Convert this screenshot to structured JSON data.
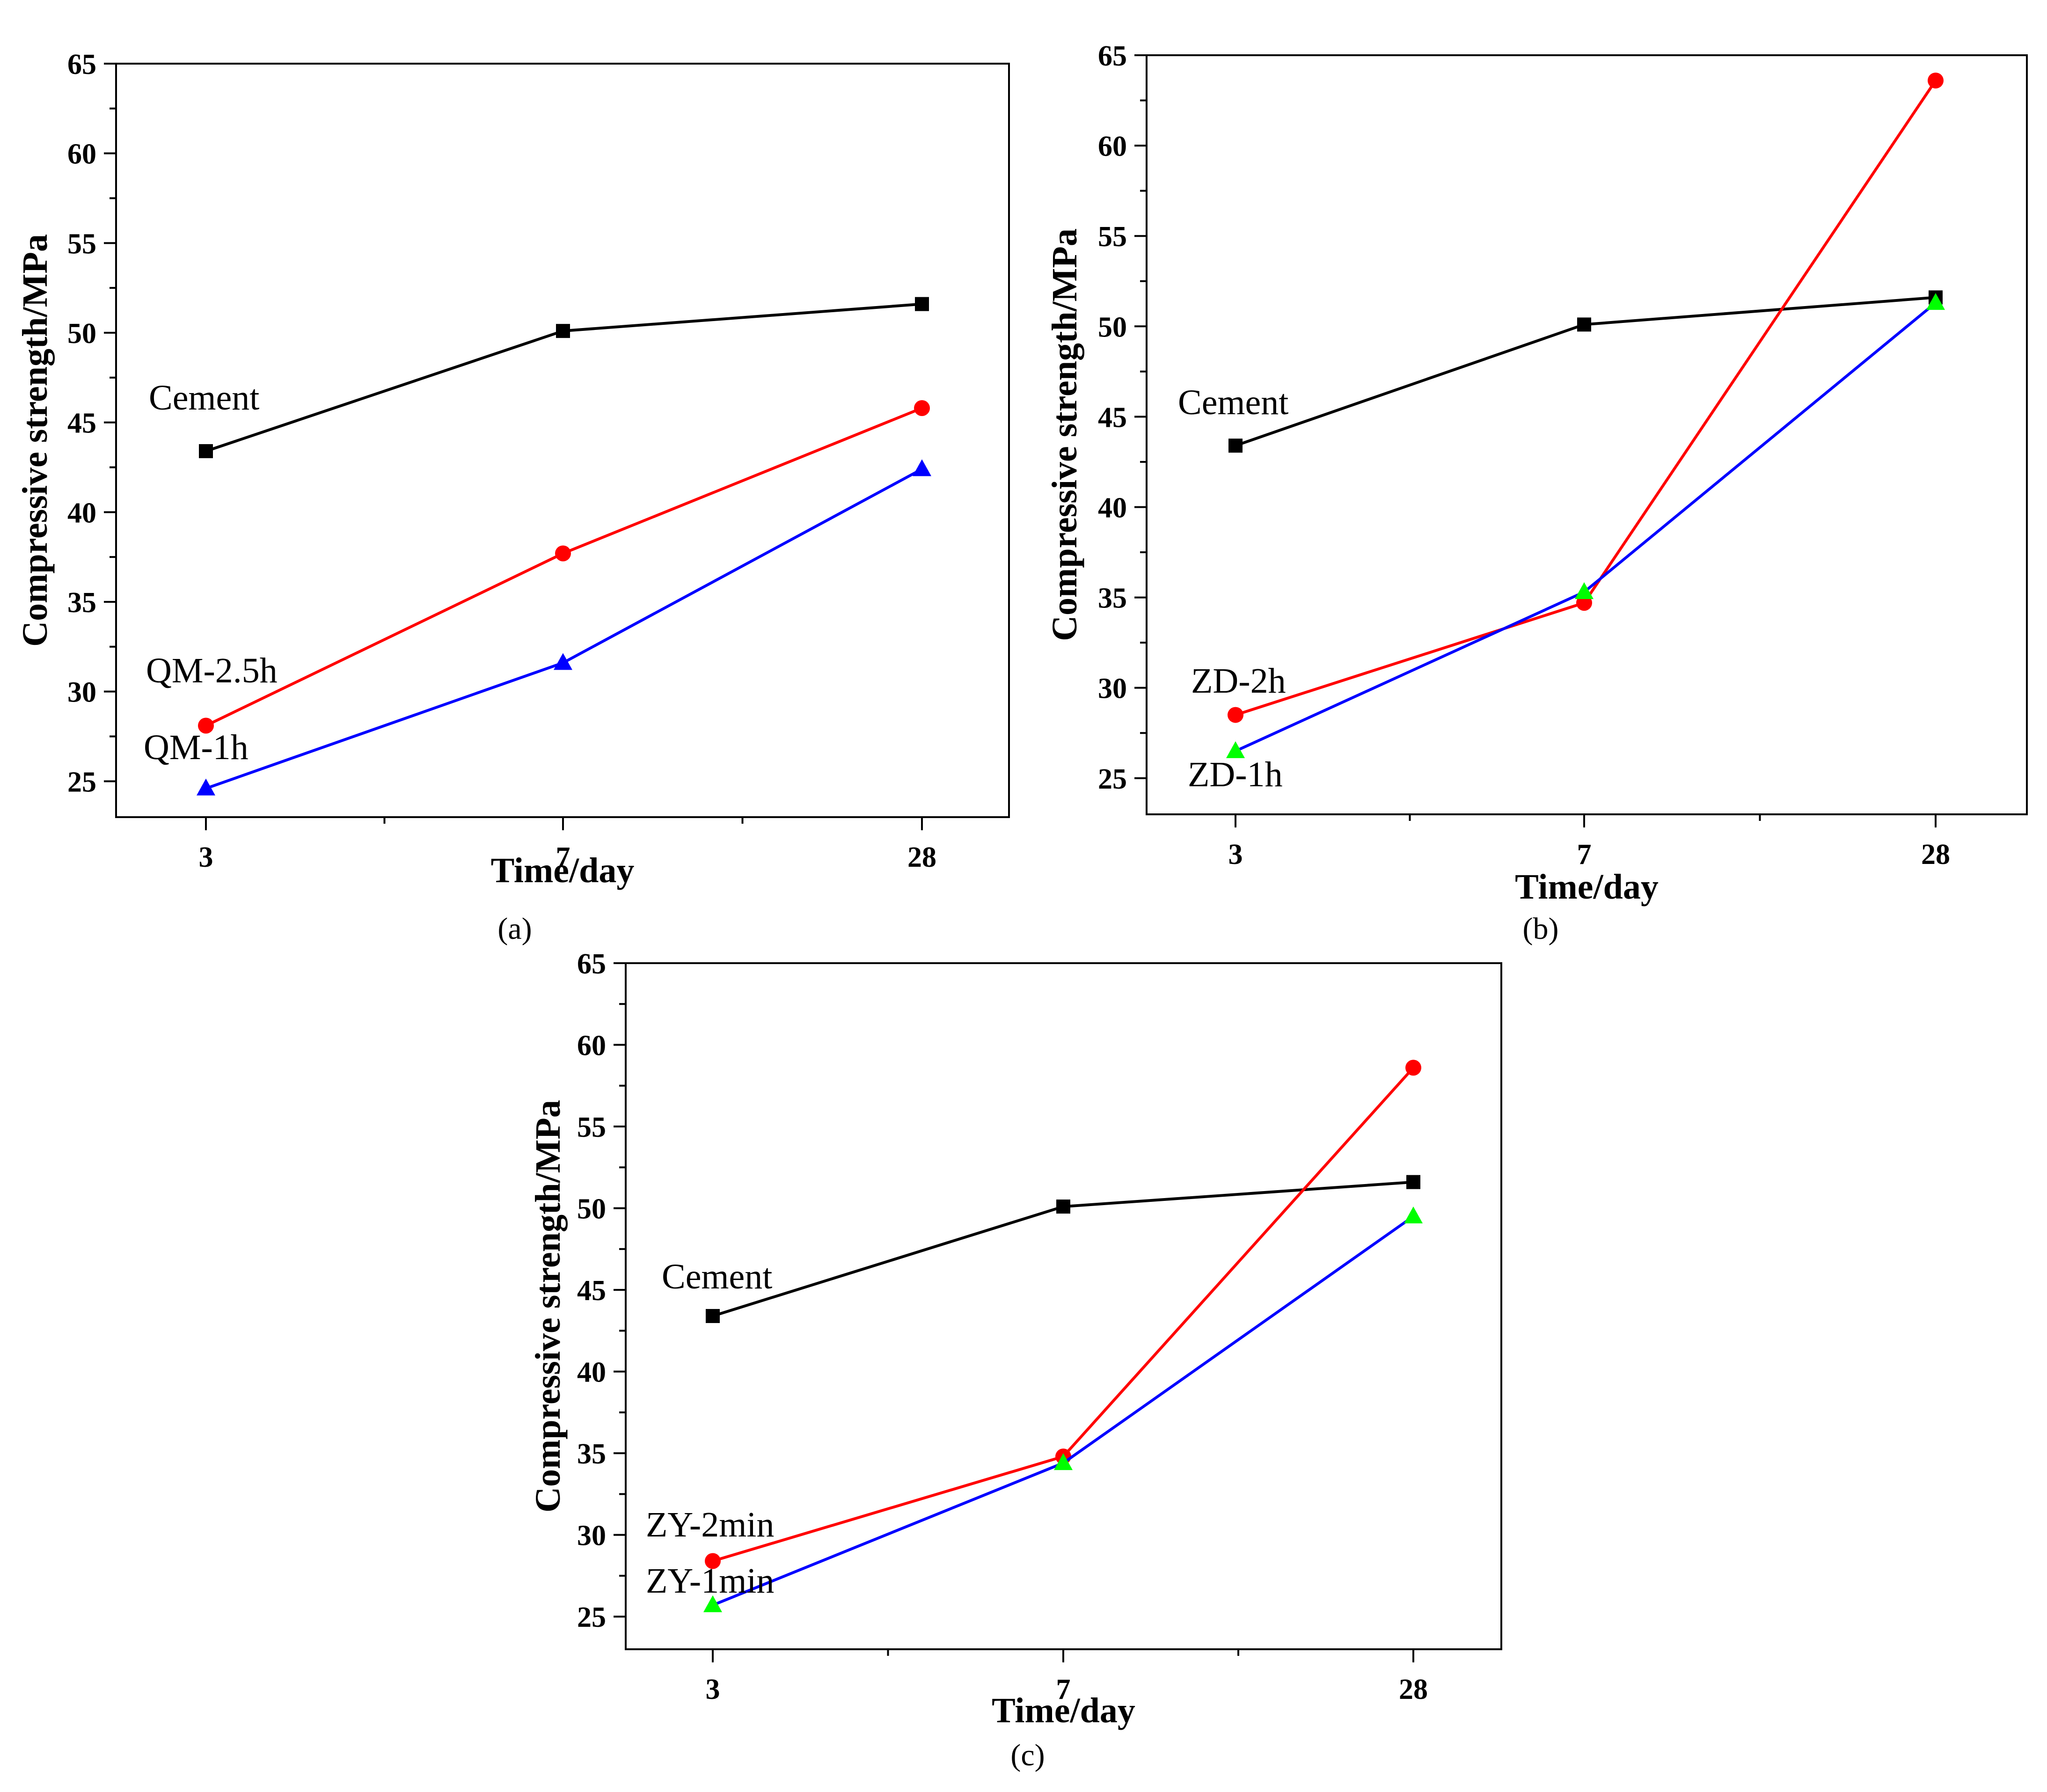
{
  "chart_data": [
    {
      "type": "line",
      "panel_label": "(a)",
      "xlabel": "Time/day",
      "ylabel": "Compressive strength/MPa",
      "categories": [
        "3",
        "7",
        "28"
      ],
      "ylim": [
        23,
        65
      ],
      "yticks": [
        25,
        30,
        35,
        40,
        45,
        50,
        55,
        60,
        65
      ],
      "series": [
        {
          "name": "Cement",
          "color": "#000000",
          "marker": "square",
          "marker_color": "#000000",
          "values": [
            43.4,
            50.1,
            51.6
          ]
        },
        {
          "name": "QM-2.5h",
          "color": "#ff0000",
          "marker": "circle",
          "marker_color": "#ff0000",
          "values": [
            28.1,
            37.7,
            45.8
          ]
        },
        {
          "name": "QM-1h",
          "color": "#0000ff",
          "marker": "triangle",
          "marker_color": "#0000ff",
          "values": [
            24.6,
            31.6,
            42.4
          ]
        }
      ]
    },
    {
      "type": "line",
      "panel_label": "(b)",
      "xlabel": "Time/day",
      "ylabel": "Compressive strength/MPa",
      "categories": [
        "3",
        "7",
        "28"
      ],
      "ylim": [
        23,
        65
      ],
      "yticks": [
        25,
        30,
        35,
        40,
        45,
        50,
        55,
        60,
        65
      ],
      "series": [
        {
          "name": "Cement",
          "color": "#000000",
          "marker": "square",
          "marker_color": "#000000",
          "values": [
            43.4,
            50.1,
            51.6
          ]
        },
        {
          "name": "ZD-2h",
          "color": "#ff0000",
          "marker": "circle",
          "marker_color": "#ff0000",
          "values": [
            28.5,
            34.7,
            63.6
          ]
        },
        {
          "name": "ZD-1h",
          "color": "#0000ff",
          "marker": "triangle",
          "marker_color": "#00ff00",
          "values": [
            26.5,
            35.3,
            51.3
          ]
        }
      ]
    },
    {
      "type": "line",
      "panel_label": "(c)",
      "xlabel": "Time/day",
      "ylabel": "Compressive strength/MPa",
      "categories": [
        "3",
        "7",
        "28"
      ],
      "ylim": [
        23,
        65
      ],
      "yticks": [
        25,
        30,
        35,
        40,
        45,
        50,
        55,
        60,
        65
      ],
      "series": [
        {
          "name": "Cement",
          "color": "#000000",
          "marker": "square",
          "marker_color": "#000000",
          "values": [
            43.4,
            50.1,
            51.6
          ]
        },
        {
          "name": "ZY-2min",
          "color": "#ff0000",
          "marker": "circle",
          "marker_color": "#ff0000",
          "values": [
            28.4,
            34.8,
            58.6
          ]
        },
        {
          "name": "ZY-1min",
          "color": "#0000ff",
          "marker": "triangle",
          "marker_color": "#00ff00",
          "values": [
            25.7,
            34.4,
            49.5
          ]
        }
      ]
    }
  ]
}
